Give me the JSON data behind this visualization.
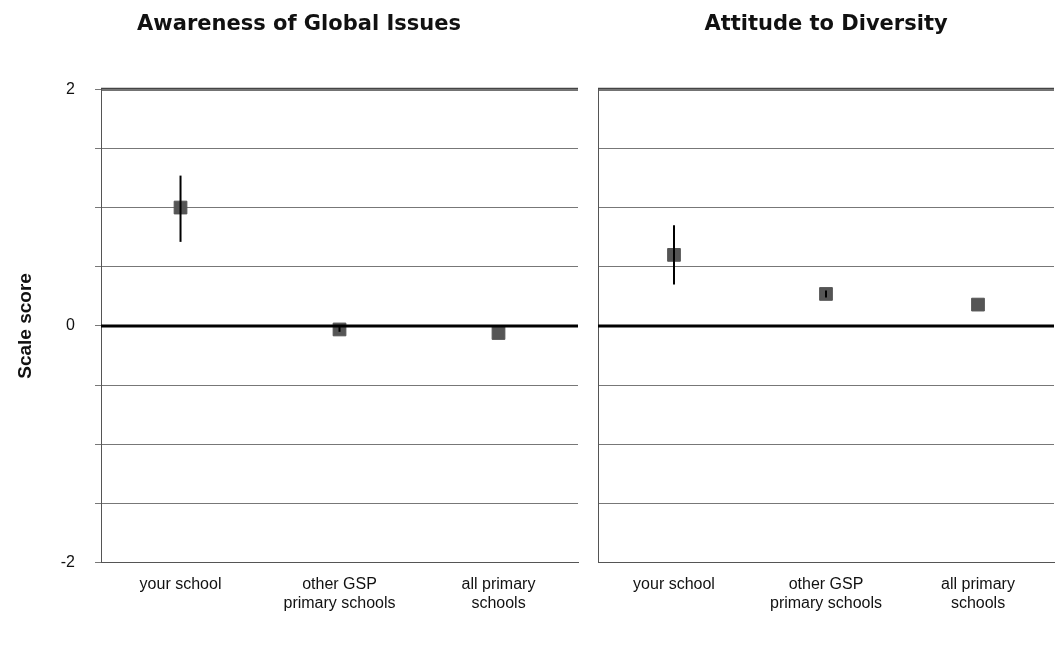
{
  "chart_data": [
    {
      "type": "scatter",
      "title": "Awareness of Global Issues",
      "ylabel": "Scale score",
      "categories": [
        "your school",
        "other GSP primary schools",
        "all primary schools"
      ],
      "values": [
        1.0,
        -0.03,
        -0.06
      ],
      "errors": [
        [
          0.71,
          1.27
        ],
        [
          -0.05,
          -0.01
        ],
        null
      ],
      "color": "#555555",
      "marker": "square",
      "ylim": [
        -2,
        2
      ],
      "yticks": [
        -2,
        {
          "value": -1.5,
          "label": null
        },
        {
          "value": -1,
          "label": null
        },
        {
          "value": -0.5,
          "label": null
        },
        0,
        {
          "value": 0.5,
          "label": null
        },
        {
          "value": 1,
          "label": null
        },
        {
          "value": 1.5,
          "label": null
        },
        2
      ],
      "grid": "y",
      "ref_lines": [
        {
          "axis": "y",
          "value": 0
        }
      ]
    },
    {
      "type": "scatter",
      "title": "Attitude to Diversity",
      "categories": [
        "your school",
        "other GSP primary schools",
        "all primary schools"
      ],
      "values": [
        0.6,
        0.27,
        0.18
      ],
      "errors": [
        [
          0.35,
          0.85
        ],
        [
          0.24,
          0.3
        ],
        null
      ],
      "color": "#555555",
      "marker": "square",
      "ylim": [
        -2,
        2
      ],
      "yticks": [
        -2,
        {
          "value": -1.5,
          "label": null
        },
        {
          "value": -1,
          "label": null
        },
        {
          "value": -0.5,
          "label": null
        },
        0,
        {
          "value": 0.5,
          "label": null
        },
        {
          "value": 1,
          "label": null
        },
        {
          "value": 1.5,
          "label": null
        },
        2
      ],
      "grid": "y",
      "tick_labels": "x",
      "ref_lines": [
        {
          "axis": "y",
          "value": 0
        }
      ]
    }
  ]
}
